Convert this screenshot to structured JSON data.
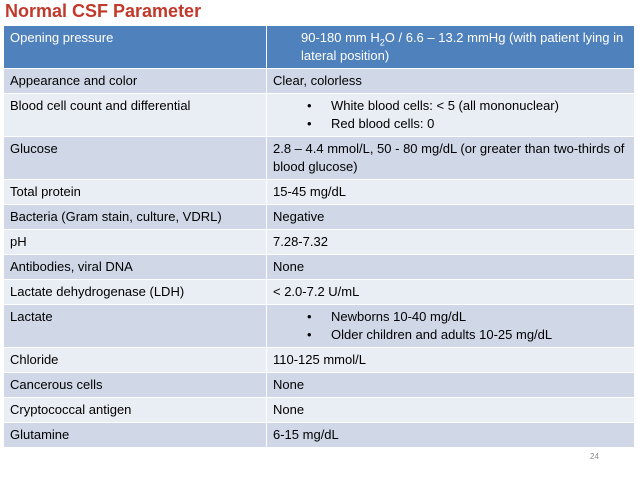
{
  "title": "Normal CSF Parameter",
  "header": {
    "label": "Opening pressure",
    "value_pre": "90-180 mm H",
    "value_sub": "2",
    "value_post": "O / 6.6 – 13.2 mmHg (with patient lying in lateral position)"
  },
  "rows": [
    {
      "label": "Appearance and color",
      "value": "Clear, colorless"
    },
    {
      "label": "Blood cell count and differential",
      "bullets": [
        "White blood cells: < 5 (all mononuclear)",
        "Red blood cells: 0"
      ]
    },
    {
      "label": "Glucose",
      "value": "2.8 – 4.4 mmol/L, 50 - 80 mg/dL (or greater than two-thirds of blood glucose)"
    },
    {
      "label": "Total protein",
      "value": "15-45 mg/dL"
    },
    {
      "label": "Bacteria (Gram stain, culture, VDRL)",
      "value": "Negative"
    },
    {
      "label": "pH",
      "value": "7.28-7.32"
    },
    {
      "label": "Antibodies, viral DNA",
      "value": "None"
    },
    {
      "label": "Lactate dehydrogenase (LDH)",
      "value": "< 2.0-7.2 U/mL"
    },
    {
      "label": "Lactate",
      "bullets": [
        "Newborns 10-40 mg/dL",
        "Older children and adults 10-25 mg/dL"
      ]
    },
    {
      "label": "Chloride",
      "value": " 110-125 mmol/L"
    },
    {
      "label": "Cancerous cells",
      "value": "None"
    },
    {
      "label": "Cryptococcal antigen",
      "value": "None"
    },
    {
      "label": "Glutamine",
      "value": "6-15 mg/dL"
    }
  ],
  "bullet_glyph": "•",
  "page_number": "24"
}
